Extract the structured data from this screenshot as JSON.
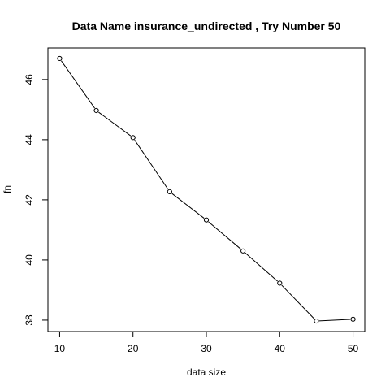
{
  "chart_data": {
    "type": "line",
    "title": "Data Name  insurance_undirected , Try Number  50",
    "xlabel": "data size",
    "ylabel": "fn",
    "x": [
      10,
      15,
      20,
      25,
      30,
      35,
      40,
      45,
      50
    ],
    "y": [
      46.7,
      44.97,
      44.07,
      42.27,
      41.33,
      40.3,
      39.23,
      37.97,
      38.03
    ],
    "xticks": [
      10,
      20,
      30,
      40,
      50
    ],
    "yticks": [
      38,
      40,
      42,
      44,
      46
    ],
    "xlim": [
      8.4,
      51.6
    ],
    "ylim": [
      37.62,
      47.05
    ],
    "markers": "open-circle",
    "grid": false
  }
}
